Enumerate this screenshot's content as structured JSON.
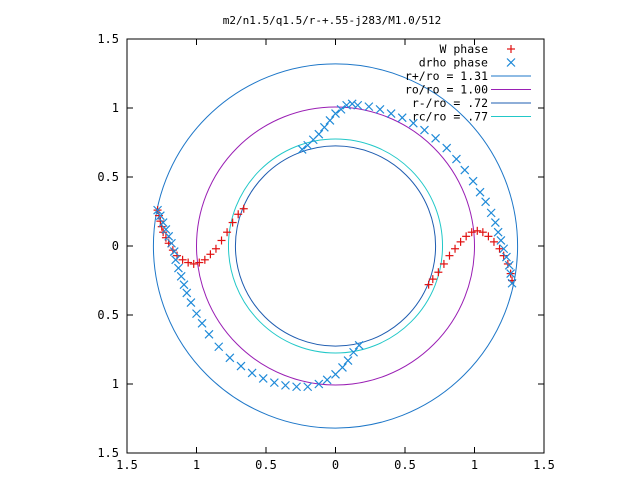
{
  "chart_data": {
    "type": "scatter",
    "title": "m2/n1.5/q1.5/r-+.55-j283/M1.0/512",
    "xlabel": "",
    "ylabel": "",
    "xlim": [
      -1.5,
      1.5
    ],
    "ylim": [
      -1.5,
      1.5
    ],
    "aspect": "equal",
    "grid": false,
    "legend_position": "top-right",
    "x_ticks": [
      {
        "v": -1.5,
        "label": "1.5"
      },
      {
        "v": -1,
        "label": "1"
      },
      {
        "v": -0.5,
        "label": "0.5"
      },
      {
        "v": 0,
        "label": "0"
      },
      {
        "v": 0.5,
        "label": "0.5"
      },
      {
        "v": 1,
        "label": "1"
      },
      {
        "v": 1.5,
        "label": "1.5"
      }
    ],
    "y_ticks": [
      {
        "v": 1.5,
        "label": "1.5"
      },
      {
        "v": 1,
        "label": "1"
      },
      {
        "v": 0.5,
        "label": "0.5"
      },
      {
        "v": 0,
        "label": "0"
      },
      {
        "v": -0.5,
        "label": "0.5"
      },
      {
        "v": -1,
        "label": "1"
      },
      {
        "v": -1.5,
        "label": "1.5"
      }
    ],
    "circles": [
      {
        "name": "r+/ro = 1.31",
        "r": 1.31,
        "color": "#1e77c8"
      },
      {
        "name": "ro/ro = 1.00",
        "r": 1.0,
        "color": "#9a1fb4"
      },
      {
        "name": "r-/ro = .72",
        "r": 0.72,
        "color": "#1e5cb0"
      },
      {
        "name": "rc/ro = .77",
        "r": 0.77,
        "color": "#22c8c8"
      }
    ],
    "scatter_series": [
      {
        "name": "W phase",
        "marker": "plus",
        "color": "#e01010",
        "points": [
          [
            -1.28,
            0.26
          ],
          [
            -1.27,
            0.22
          ],
          [
            -1.26,
            0.18
          ],
          [
            -1.25,
            0.14
          ],
          [
            -1.24,
            0.1
          ],
          [
            -1.22,
            0.06
          ],
          [
            -1.2,
            0.02
          ],
          [
            -1.17,
            -0.03
          ],
          [
            -1.14,
            -0.07
          ],
          [
            -1.1,
            -0.1
          ],
          [
            -1.06,
            -0.12
          ],
          [
            -1.02,
            -0.13
          ],
          [
            -0.98,
            -0.12
          ],
          [
            -0.94,
            -0.1
          ],
          [
            -0.9,
            -0.06
          ],
          [
            -0.86,
            -0.02
          ],
          [
            -0.82,
            0.04
          ],
          [
            -0.78,
            0.1
          ],
          [
            -0.74,
            0.17
          ],
          [
            -0.7,
            0.23
          ],
          [
            -0.66,
            0.27
          ],
          [
            0.67,
            -0.28
          ],
          [
            0.7,
            -0.24
          ],
          [
            0.74,
            -0.19
          ],
          [
            0.78,
            -0.13
          ],
          [
            0.82,
            -0.07
          ],
          [
            0.86,
            -0.02
          ],
          [
            0.9,
            0.03
          ],
          [
            0.94,
            0.07
          ],
          [
            0.98,
            0.1
          ],
          [
            1.02,
            0.11
          ],
          [
            1.06,
            0.1
          ],
          [
            1.1,
            0.07
          ],
          [
            1.14,
            0.03
          ],
          [
            1.18,
            -0.02
          ],
          [
            1.21,
            -0.07
          ],
          [
            1.24,
            -0.13
          ],
          [
            1.26,
            -0.2
          ],
          [
            1.27,
            -0.25
          ]
        ]
      },
      {
        "name": "drho phase",
        "marker": "cross",
        "color": "#1f8ad8",
        "points": [
          [
            -1.28,
            0.26
          ],
          [
            -1.26,
            0.22
          ],
          [
            -1.24,
            0.17
          ],
          [
            -1.22,
            0.12
          ],
          [
            -1.2,
            0.07
          ],
          [
            -1.18,
            0.02
          ],
          [
            -1.16,
            -0.04
          ],
          [
            -1.15,
            -0.1
          ],
          [
            -1.13,
            -0.16
          ],
          [
            -1.11,
            -0.22
          ],
          [
            -1.09,
            -0.28
          ],
          [
            -1.07,
            -0.34
          ],
          [
            -1.04,
            -0.41
          ],
          [
            -1.0,
            -0.49
          ],
          [
            -0.96,
            -0.56
          ],
          [
            -0.91,
            -0.64
          ],
          [
            -0.84,
            -0.73
          ],
          [
            -0.76,
            -0.81
          ],
          [
            -0.68,
            -0.87
          ],
          [
            -0.6,
            -0.92
          ],
          [
            -0.52,
            -0.96
          ],
          [
            -0.44,
            -0.99
          ],
          [
            -0.36,
            -1.01
          ],
          [
            -0.28,
            -1.02
          ],
          [
            -0.2,
            -1.02
          ],
          [
            -0.12,
            -1.0
          ],
          [
            -0.06,
            -0.97
          ],
          [
            0.0,
            -0.93
          ],
          [
            0.05,
            -0.88
          ],
          [
            0.09,
            -0.83
          ],
          [
            0.13,
            -0.77
          ],
          [
            0.17,
            -0.72
          ],
          [
            0.16,
            1.02
          ],
          [
            0.24,
            1.01
          ],
          [
            0.32,
            0.99
          ],
          [
            0.4,
            0.96
          ],
          [
            0.48,
            0.93
          ],
          [
            0.56,
            0.89
          ],
          [
            0.64,
            0.84
          ],
          [
            0.72,
            0.78
          ],
          [
            0.8,
            0.71
          ],
          [
            0.87,
            0.63
          ],
          [
            0.93,
            0.55
          ],
          [
            0.99,
            0.47
          ],
          [
            1.04,
            0.39
          ],
          [
            1.08,
            0.32
          ],
          [
            1.12,
            0.24
          ],
          [
            1.15,
            0.17
          ],
          [
            1.17,
            0.1
          ],
          [
            1.19,
            0.04
          ],
          [
            1.21,
            -0.02
          ],
          [
            1.23,
            -0.08
          ],
          [
            1.25,
            -0.14
          ],
          [
            1.26,
            -0.2
          ],
          [
            1.27,
            -0.27
          ],
          [
            -0.24,
            0.7
          ],
          [
            -0.2,
            0.73
          ],
          [
            -0.16,
            0.77
          ],
          [
            -0.12,
            0.81
          ],
          [
            -0.08,
            0.86
          ],
          [
            -0.04,
            0.91
          ],
          [
            0.0,
            0.96
          ],
          [
            0.04,
            0.99
          ],
          [
            0.08,
            1.02
          ],
          [
            0.12,
            1.03
          ]
        ]
      }
    ]
  }
}
